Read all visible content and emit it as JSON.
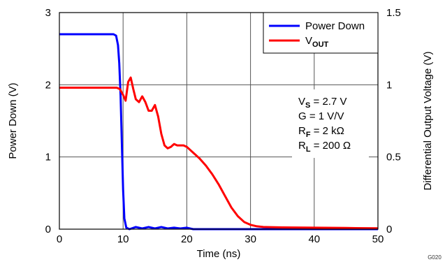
{
  "chart_data": {
    "type": "line",
    "xlabel": "Time (ns)",
    "ylabel_left": "Power Down (V)",
    "ylabel_right": "Differential Output Voltage (V)",
    "xlim": [
      0,
      50
    ],
    "ylim_left": [
      0,
      3
    ],
    "ylim_right": [
      0,
      1.5
    ],
    "x_ticks": [
      "0",
      "10",
      "20",
      "30",
      "40",
      "50"
    ],
    "y_ticks_left": [
      "0",
      "1",
      "2",
      "3"
    ],
    "y_ticks_right": [
      "0",
      "0.5",
      "1",
      "1.5"
    ],
    "grid": true,
    "legend_position": "top-right",
    "figure_code": "G020",
    "annotations": [
      {
        "main": "V",
        "sub": "S",
        "rest": " = 2.7 V"
      },
      {
        "main": "G = 1 V/V",
        "sub": "",
        "rest": ""
      },
      {
        "main": "R",
        "sub": "F",
        "rest": " = 2 kΩ"
      },
      {
        "main": "R",
        "sub": "L",
        "rest": " = 200 Ω"
      }
    ],
    "series": [
      {
        "name": "Power Down",
        "legend_main": "Power Down",
        "legend_sub": "",
        "color": "#0000ff",
        "axis": "left",
        "x": [
          0,
          1,
          2,
          3,
          4,
          5,
          6,
          7,
          8,
          8.5,
          8.9,
          9.2,
          9.4,
          9.6,
          9.8,
          10.0,
          10.2,
          10.5,
          11,
          12,
          13,
          14,
          15,
          16,
          17,
          18,
          19,
          20,
          21,
          22,
          23,
          24,
          25,
          26,
          28,
          30,
          35,
          40,
          45,
          50
        ],
        "y": [
          2.7,
          2.7,
          2.7,
          2.7,
          2.7,
          2.7,
          2.7,
          2.7,
          2.7,
          2.7,
          2.68,
          2.55,
          2.3,
          1.85,
          1.2,
          0.55,
          0.15,
          0.02,
          0.0,
          0.03,
          0.01,
          0.03,
          0.01,
          0.03,
          0.01,
          0.02,
          0.01,
          0.02,
          0.0,
          0.0,
          0.0,
          0.0,
          0.0,
          0.0,
          0.0,
          0.0,
          0.0,
          0.0,
          0.0,
          0.0
        ]
      },
      {
        "name": "VOUT",
        "legend_main": "V",
        "legend_sub": "OUT",
        "color": "#ff0000",
        "axis": "right",
        "x": [
          0,
          2,
          4,
          6,
          8,
          9,
          9.5,
          10,
          10.4,
          10.8,
          11.2,
          11.6,
          12,
          12.5,
          13,
          13.5,
          14,
          14.5,
          15,
          15.5,
          16,
          16.5,
          17,
          17.5,
          18,
          18.5,
          19,
          19.5,
          20,
          21,
          22,
          23,
          24,
          25,
          26,
          27,
          28,
          29,
          30,
          31,
          32,
          35,
          40,
          45,
          50
        ],
        "y": [
          0.98,
          0.98,
          0.98,
          0.98,
          0.98,
          0.98,
          0.97,
          0.93,
          0.89,
          1.02,
          1.05,
          0.97,
          0.9,
          0.88,
          0.92,
          0.88,
          0.82,
          0.82,
          0.86,
          0.78,
          0.66,
          0.58,
          0.56,
          0.57,
          0.59,
          0.58,
          0.58,
          0.58,
          0.57,
          0.53,
          0.49,
          0.44,
          0.38,
          0.31,
          0.23,
          0.15,
          0.09,
          0.05,
          0.03,
          0.02,
          0.015,
          0.012,
          0.01,
          0.008,
          0.006
        ]
      }
    ]
  }
}
